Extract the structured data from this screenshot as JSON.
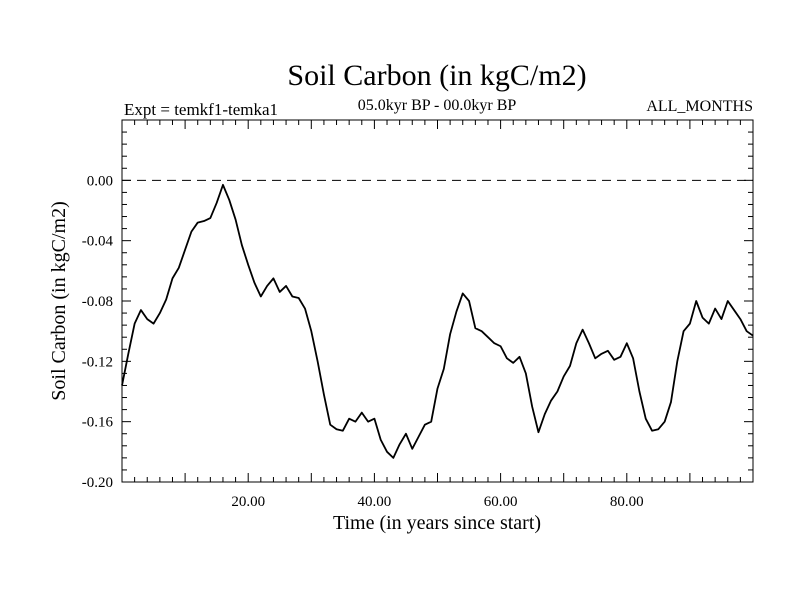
{
  "chart_data": {
    "type": "line",
    "title": "Soil Carbon (in kgC/m2)",
    "subtitle_left": "Expt = temkf1-temka1",
    "subtitle_center": "05.0kyr BP - 00.0kyr BP",
    "subtitle_right": "ALL_MONTHS",
    "xlabel": "Time (in years since start)",
    "ylabel": "Soil Carbon (in kgC/m2)",
    "xlim": [
      0,
      100
    ],
    "ylim": [
      -0.2,
      0.04
    ],
    "xticks": [
      20,
      40,
      60,
      80
    ],
    "xtick_labels": [
      "20.00",
      "40.00",
      "60.00",
      "80.00"
    ],
    "yticks": [
      0.0,
      -0.04,
      -0.08,
      -0.12,
      -0.16,
      -0.2
    ],
    "ytick_labels": [
      "0.00",
      "-0.04",
      "-0.08",
      "-0.12",
      "-0.16",
      "-0.20"
    ],
    "reference_line": {
      "y": 0.0,
      "style": "dashed"
    },
    "series": [
      {
        "name": "Soil Carbon",
        "x": [
          0,
          1,
          2,
          3,
          4,
          5,
          6,
          7,
          8,
          9,
          10,
          11,
          12,
          13,
          14,
          15,
          16,
          17,
          18,
          19,
          20,
          21,
          22,
          23,
          24,
          25,
          26,
          27,
          28,
          29,
          30,
          31,
          32,
          33,
          34,
          35,
          36,
          37,
          38,
          39,
          40,
          41,
          42,
          43,
          44,
          45,
          46,
          47,
          48,
          49,
          50,
          51,
          52,
          53,
          54,
          55,
          56,
          57,
          58,
          59,
          60,
          61,
          62,
          63,
          64,
          65,
          66,
          67,
          68,
          69,
          70,
          71,
          72,
          73,
          74,
          75,
          76,
          77,
          78,
          79,
          80,
          81,
          82,
          83,
          84,
          85,
          86,
          87,
          88,
          89,
          90,
          91,
          92,
          93,
          94,
          95,
          96,
          97,
          98,
          99,
          100
        ],
        "values": [
          -0.136,
          -0.115,
          -0.095,
          -0.086,
          -0.092,
          -0.095,
          -0.088,
          -0.079,
          -0.065,
          -0.058,
          -0.046,
          -0.034,
          -0.028,
          -0.027,
          -0.025,
          -0.015,
          -0.003,
          -0.013,
          -0.026,
          -0.043,
          -0.056,
          -0.068,
          -0.077,
          -0.07,
          -0.065,
          -0.074,
          -0.07,
          -0.077,
          -0.078,
          -0.085,
          -0.1,
          -0.12,
          -0.142,
          -0.162,
          -0.165,
          -0.166,
          -0.158,
          -0.16,
          -0.154,
          -0.16,
          -0.158,
          -0.172,
          -0.18,
          -0.184,
          -0.175,
          -0.168,
          -0.178,
          -0.17,
          -0.162,
          -0.16,
          -0.138,
          -0.125,
          -0.102,
          -0.087,
          -0.075,
          -0.08,
          -0.098,
          -0.1,
          -0.104,
          -0.108,
          -0.11,
          -0.118,
          -0.121,
          -0.117,
          -0.128,
          -0.15,
          -0.167,
          -0.155,
          -0.146,
          -0.14,
          -0.13,
          -0.123,
          -0.108,
          -0.099,
          -0.108,
          -0.118,
          -0.115,
          -0.113,
          -0.119,
          -0.117,
          -0.108,
          -0.118,
          -0.14,
          -0.158,
          -0.166,
          -0.165,
          -0.16,
          -0.147,
          -0.12,
          -0.1,
          -0.095,
          -0.08,
          -0.091,
          -0.095,
          -0.085,
          -0.092,
          -0.08,
          -0.086,
          -0.092,
          -0.1,
          -0.103
        ]
      }
    ]
  }
}
